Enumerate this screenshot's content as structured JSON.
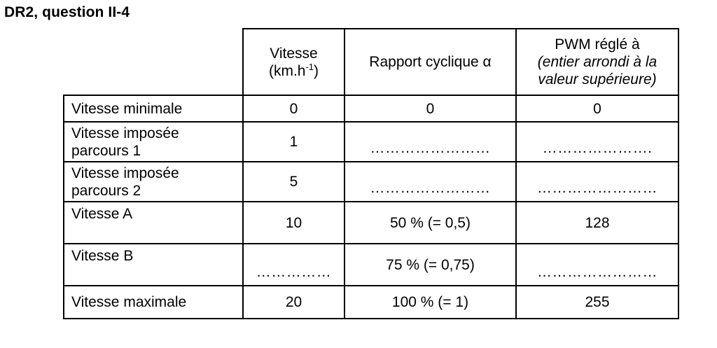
{
  "title": "DR2, question II-4",
  "headers": {
    "speed_line1": "Vitesse",
    "speed_line2_pre": "(km.h",
    "speed_line2_sup": "-1",
    "speed_line2_post": ")",
    "duty": "Rapport cyclique α",
    "pwm_line1": "PWM réglé à",
    "pwm_line2": "(entier arrondi à la",
    "pwm_line3": "valeur supérieure)"
  },
  "rows": [
    {
      "label_line1": "Vitesse minimale",
      "label_line2": "",
      "speed": "0",
      "duty": "0",
      "pwm": "0"
    },
    {
      "label_line1": "Vitesse imposée",
      "label_line2": "parcours 1",
      "speed": "1",
      "duty": "……………………",
      "pwm": "…………………."
    },
    {
      "label_line1": "Vitesse imposée",
      "label_line2": "parcours 2",
      "speed": "5",
      "duty": "……………………",
      "pwm": "……………………"
    },
    {
      "label_line1": "Vitesse A",
      "label_line2": "",
      "speed": "10",
      "duty": "50 %  (= 0,5)",
      "pwm": "128"
    },
    {
      "label_line1": "Vitesse B",
      "label_line2": "",
      "speed": "……………",
      "duty": "75 % (= 0,75)",
      "pwm": "……………………"
    },
    {
      "label_line1": "Vitesse maximale",
      "label_line2": "",
      "speed": "20",
      "duty": "100 % (= 1)",
      "pwm": "255"
    }
  ]
}
